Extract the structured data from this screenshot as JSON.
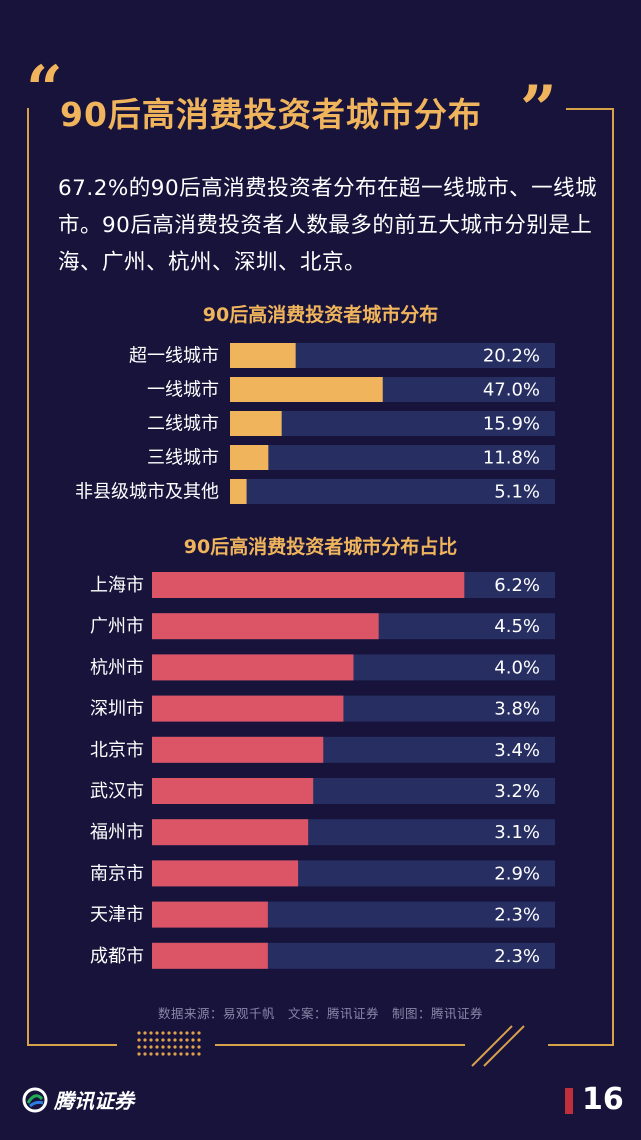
{
  "header": {
    "title": "90后高消费投资者城市分布"
  },
  "intro": {
    "text": "67.2%的90后高消费投资者分布在超一线城市、一线城市。90后高消费投资者人数最多的前五大城市分别是上海、广州、杭州、深圳、北京。"
  },
  "colors": {
    "background": "#17133b",
    "accent": "#f0b45c",
    "frame": "#d8a24a",
    "track": "#262e62",
    "bar1": "#f0b45c",
    "bar2": "#db5566"
  },
  "chart_data": [
    {
      "type": "bar",
      "orientation": "horizontal",
      "title": "90后高消费投资者城市分布",
      "categories": [
        "超一线城市",
        "一线城市",
        "二线城市",
        "三线城市",
        "非县级城市及其他"
      ],
      "values": [
        20.2,
        47.0,
        15.9,
        11.8,
        5.1
      ],
      "value_labels": [
        "20.2%",
        "47.0%",
        "15.9%",
        "11.8%",
        "5.1%"
      ],
      "xlim": [
        0,
        100
      ]
    },
    {
      "type": "bar",
      "orientation": "horizontal",
      "title": "90后高消费投资者城市分布占比",
      "categories": [
        "上海市",
        "广州市",
        "杭州市",
        "深圳市",
        "北京市",
        "武汉市",
        "福州市",
        "南京市",
        "天津市",
        "成都市"
      ],
      "values": [
        6.2,
        4.5,
        4.0,
        3.8,
        3.4,
        3.2,
        3.1,
        2.9,
        2.3,
        2.3
      ],
      "value_labels": [
        "6.2%",
        "4.5%",
        "4.0%",
        "3.8%",
        "3.4%",
        "3.2%",
        "3.1%",
        "2.9%",
        "2.3%",
        "2.3%"
      ],
      "xlim": [
        0,
        8
      ]
    }
  ],
  "footer": {
    "source": "数据来源：易观千帆　文案：腾讯证券　制图：腾讯证券",
    "brand": "腾讯证券",
    "page_number": "16"
  }
}
